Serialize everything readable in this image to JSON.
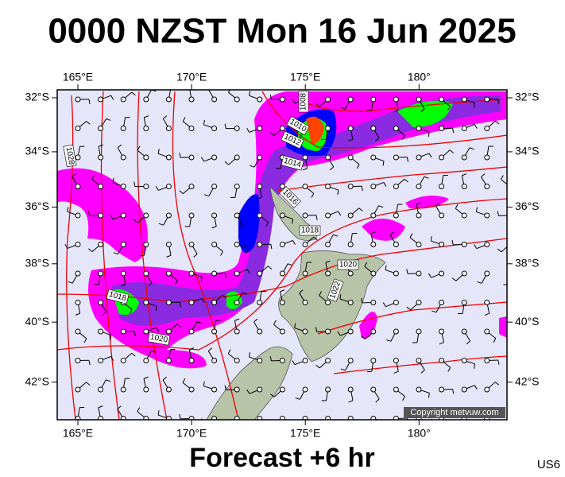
{
  "header": {
    "title": "0000 NZST Mon 16 Jun 2025"
  },
  "footer": {
    "subtitle": "Forecast +6 hr",
    "code": "US6"
  },
  "map": {
    "lon_ticks": [
      {
        "value": 165,
        "label": "165°E"
      },
      {
        "value": 170,
        "label": "170°E"
      },
      {
        "value": 175,
        "label": "175°E"
      },
      {
        "value": 180,
        "label": "180°"
      }
    ],
    "lat_ticks": [
      {
        "value": -32,
        "label": "32°S"
      },
      {
        "value": -34,
        "label": "34°S"
      },
      {
        "value": -36,
        "label": "36°S"
      },
      {
        "value": -38,
        "label": "38°S"
      },
      {
        "value": -40,
        "label": "40°S"
      },
      {
        "value": -42,
        "label": "42°S"
      }
    ],
    "isobar_labels": [
      "1008",
      "1010",
      "1012",
      "1014",
      "1016",
      "1018",
      "1020",
      "1022",
      "1018",
      "1020",
      "1028"
    ],
    "copyright": "Copyright metvuw.com"
  }
}
